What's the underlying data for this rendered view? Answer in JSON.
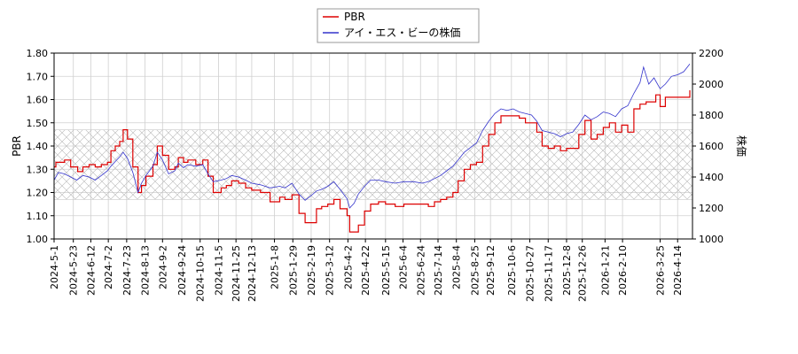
{
  "chart_data": {
    "type": "line",
    "legend_position": "top-center",
    "grid": true,
    "band": {
      "from": 1.17,
      "to": 1.47,
      "axis": "left",
      "pattern": "crosshatch"
    },
    "xlim": [
      "2024-05-01",
      "2026-05-01"
    ],
    "y_left": {
      "label": "PBR",
      "lim": [
        1.0,
        1.8
      ],
      "ticks": [
        "1.00",
        "1.10",
        "1.20",
        "1.30",
        "1.40",
        "1.50",
        "1.60",
        "1.70",
        "1.80"
      ]
    },
    "y_right": {
      "label": "株価",
      "lim": [
        1000,
        2200
      ],
      "ticks": [
        "1000",
        "1200",
        "1400",
        "1600",
        "1800",
        "2000",
        "2200"
      ]
    },
    "x_ticks": [
      "2024-5-1",
      "2024-5-23",
      "2024-6-12",
      "2024-7-2",
      "2024-7-23",
      "2024-8-13",
      "2024-9-2",
      "2024-9-24",
      "2024-10-15",
      "2024-11-5",
      "2024-11-25",
      "2024-12-13",
      "2025-1-8",
      "2025-1-29",
      "2025-2-19",
      "2025-3-12",
      "2025-4-2",
      "2025-4-22",
      "2025-5-15",
      "2025-6-4",
      "2025-6-24",
      "2025-7-14",
      "2025-8-4",
      "2025-8-25",
      "2025-9-12",
      "2025-10-6",
      "2025-10-27",
      "2025-11-17",
      "2025-12-8",
      "2025-12-26",
      "2026-1-21",
      "2026-2-10",
      "2026-3-25",
      "2026-4-14"
    ],
    "series": [
      {
        "name": "PBR",
        "color": "#dd0000",
        "axis": "left",
        "points": [
          [
            "2024-05-01",
            1.31
          ],
          [
            "2024-05-03",
            1.33
          ],
          [
            "2024-05-13",
            1.34
          ],
          [
            "2024-05-20",
            1.31
          ],
          [
            "2024-05-28",
            1.29
          ],
          [
            "2024-06-03",
            1.31
          ],
          [
            "2024-06-10",
            1.32
          ],
          [
            "2024-06-17",
            1.31
          ],
          [
            "2024-06-24",
            1.32
          ],
          [
            "2024-07-01",
            1.33
          ],
          [
            "2024-07-05",
            1.38
          ],
          [
            "2024-07-10",
            1.4
          ],
          [
            "2024-07-15",
            1.42
          ],
          [
            "2024-07-19",
            1.47
          ],
          [
            "2024-07-24",
            1.43
          ],
          [
            "2024-07-30",
            1.31
          ],
          [
            "2024-08-05",
            1.2
          ],
          [
            "2024-08-09",
            1.23
          ],
          [
            "2024-08-14",
            1.27
          ],
          [
            "2024-08-22",
            1.32
          ],
          [
            "2024-08-27",
            1.4
          ],
          [
            "2024-09-02",
            1.36
          ],
          [
            "2024-09-09",
            1.3
          ],
          [
            "2024-09-16",
            1.31
          ],
          [
            "2024-09-20",
            1.35
          ],
          [
            "2024-09-26",
            1.33
          ],
          [
            "2024-10-01",
            1.34
          ],
          [
            "2024-10-10",
            1.32
          ],
          [
            "2024-10-18",
            1.34
          ],
          [
            "2024-10-24",
            1.27
          ],
          [
            "2024-10-30",
            1.2
          ],
          [
            "2024-11-08",
            1.22
          ],
          [
            "2024-11-14",
            1.23
          ],
          [
            "2024-11-20",
            1.25
          ],
          [
            "2024-11-28",
            1.24
          ],
          [
            "2024-12-06",
            1.22
          ],
          [
            "2024-12-13",
            1.21
          ],
          [
            "2024-12-23",
            1.2
          ],
          [
            "2025-01-03",
            1.16
          ],
          [
            "2025-01-14",
            1.18
          ],
          [
            "2025-01-20",
            1.17
          ],
          [
            "2025-01-28",
            1.19
          ],
          [
            "2025-02-05",
            1.11
          ],
          [
            "2025-02-12",
            1.07
          ],
          [
            "2025-02-19",
            1.07
          ],
          [
            "2025-02-25",
            1.13
          ],
          [
            "2025-03-03",
            1.14
          ],
          [
            "2025-03-10",
            1.15
          ],
          [
            "2025-03-17",
            1.17
          ],
          [
            "2025-03-24",
            1.13
          ],
          [
            "2025-04-01",
            1.1
          ],
          [
            "2025-04-04",
            1.03
          ],
          [
            "2025-04-09",
            1.03
          ],
          [
            "2025-04-14",
            1.06
          ],
          [
            "2025-04-21",
            1.12
          ],
          [
            "2025-04-28",
            1.15
          ],
          [
            "2025-05-07",
            1.16
          ],
          [
            "2025-05-15",
            1.15
          ],
          [
            "2025-05-26",
            1.14
          ],
          [
            "2025-06-05",
            1.15
          ],
          [
            "2025-06-16",
            1.15
          ],
          [
            "2025-06-26",
            1.15
          ],
          [
            "2025-07-03",
            1.14
          ],
          [
            "2025-07-10",
            1.16
          ],
          [
            "2025-07-17",
            1.17
          ],
          [
            "2025-07-24",
            1.18
          ],
          [
            "2025-07-31",
            1.2
          ],
          [
            "2025-08-06",
            1.25
          ],
          [
            "2025-08-13",
            1.3
          ],
          [
            "2025-08-20",
            1.32
          ],
          [
            "2025-08-27",
            1.33
          ],
          [
            "2025-09-03",
            1.4
          ],
          [
            "2025-09-10",
            1.45
          ],
          [
            "2025-09-17",
            1.5
          ],
          [
            "2025-09-24",
            1.53
          ],
          [
            "2025-10-01",
            1.53
          ],
          [
            "2025-10-08",
            1.53
          ],
          [
            "2025-10-15",
            1.52
          ],
          [
            "2025-10-22",
            1.5
          ],
          [
            "2025-10-29",
            1.5
          ],
          [
            "2025-11-04",
            1.46
          ],
          [
            "2025-11-10",
            1.4
          ],
          [
            "2025-11-17",
            1.39
          ],
          [
            "2025-11-24",
            1.4
          ],
          [
            "2025-12-01",
            1.38
          ],
          [
            "2025-12-08",
            1.39
          ],
          [
            "2025-12-15",
            1.39
          ],
          [
            "2025-12-22",
            1.45
          ],
          [
            "2025-12-29",
            1.51
          ],
          [
            "2026-01-05",
            1.43
          ],
          [
            "2026-01-12",
            1.45
          ],
          [
            "2026-01-19",
            1.48
          ],
          [
            "2026-01-26",
            1.5
          ],
          [
            "2026-02-02",
            1.46
          ],
          [
            "2026-02-09",
            1.49
          ],
          [
            "2026-02-16",
            1.46
          ],
          [
            "2026-02-23",
            1.56
          ],
          [
            "2026-03-02",
            1.58
          ],
          [
            "2026-03-09",
            1.59
          ],
          [
            "2026-03-16",
            1.59
          ],
          [
            "2026-03-20",
            1.62
          ],
          [
            "2026-03-25",
            1.57
          ],
          [
            "2026-03-31",
            1.61
          ],
          [
            "2026-04-07",
            1.61
          ],
          [
            "2026-04-14",
            1.61
          ],
          [
            "2026-04-21",
            1.61
          ],
          [
            "2026-04-28",
            1.64
          ]
        ]
      },
      {
        "name": "アイ・エス・ビーの株価",
        "color": "#3333cc",
        "axis": "right",
        "points": [
          [
            "2024-05-01",
            1380
          ],
          [
            "2024-05-06",
            1430
          ],
          [
            "2024-05-13",
            1420
          ],
          [
            "2024-05-20",
            1400
          ],
          [
            "2024-05-27",
            1380
          ],
          [
            "2024-06-03",
            1410
          ],
          [
            "2024-06-10",
            1400
          ],
          [
            "2024-06-17",
            1380
          ],
          [
            "2024-06-24",
            1410
          ],
          [
            "2024-07-01",
            1440
          ],
          [
            "2024-07-05",
            1470
          ],
          [
            "2024-07-10",
            1500
          ],
          [
            "2024-07-15",
            1530
          ],
          [
            "2024-07-19",
            1560
          ],
          [
            "2024-07-24",
            1520
          ],
          [
            "2024-07-30",
            1430
          ],
          [
            "2024-08-05",
            1300
          ],
          [
            "2024-08-09",
            1360
          ],
          [
            "2024-08-14",
            1410
          ],
          [
            "2024-08-22",
            1470
          ],
          [
            "2024-08-27",
            1560
          ],
          [
            "2024-09-02",
            1510
          ],
          [
            "2024-09-09",
            1420
          ],
          [
            "2024-09-16",
            1440
          ],
          [
            "2024-09-20",
            1490
          ],
          [
            "2024-09-26",
            1460
          ],
          [
            "2024-10-01",
            1480
          ],
          [
            "2024-10-10",
            1470
          ],
          [
            "2024-10-18",
            1480
          ],
          [
            "2024-10-24",
            1420
          ],
          [
            "2024-10-30",
            1370
          ],
          [
            "2024-11-08",
            1380
          ],
          [
            "2024-11-14",
            1390
          ],
          [
            "2024-11-20",
            1410
          ],
          [
            "2024-11-28",
            1400
          ],
          [
            "2024-12-06",
            1380
          ],
          [
            "2024-12-13",
            1360
          ],
          [
            "2024-12-23",
            1350
          ],
          [
            "2025-01-03",
            1330
          ],
          [
            "2025-01-14",
            1340
          ],
          [
            "2025-01-20",
            1330
          ],
          [
            "2025-01-28",
            1360
          ],
          [
            "2025-02-05",
            1290
          ],
          [
            "2025-02-12",
            1250
          ],
          [
            "2025-02-19",
            1280
          ],
          [
            "2025-02-25",
            1310
          ],
          [
            "2025-03-03",
            1320
          ],
          [
            "2025-03-10",
            1340
          ],
          [
            "2025-03-17",
            1370
          ],
          [
            "2025-03-24",
            1320
          ],
          [
            "2025-04-01",
            1260
          ],
          [
            "2025-04-04",
            1200
          ],
          [
            "2025-04-09",
            1230
          ],
          [
            "2025-04-14",
            1290
          ],
          [
            "2025-04-21",
            1340
          ],
          [
            "2025-04-28",
            1380
          ],
          [
            "2025-05-07",
            1380
          ],
          [
            "2025-05-15",
            1370
          ],
          [
            "2025-05-26",
            1360
          ],
          [
            "2025-06-05",
            1370
          ],
          [
            "2025-06-16",
            1370
          ],
          [
            "2025-06-26",
            1360
          ],
          [
            "2025-07-03",
            1370
          ],
          [
            "2025-07-10",
            1390
          ],
          [
            "2025-07-17",
            1410
          ],
          [
            "2025-07-24",
            1440
          ],
          [
            "2025-07-31",
            1470
          ],
          [
            "2025-08-06",
            1510
          ],
          [
            "2025-08-13",
            1560
          ],
          [
            "2025-08-20",
            1590
          ],
          [
            "2025-08-27",
            1620
          ],
          [
            "2025-09-03",
            1700
          ],
          [
            "2025-09-10",
            1760
          ],
          [
            "2025-09-17",
            1810
          ],
          [
            "2025-09-24",
            1840
          ],
          [
            "2025-10-01",
            1830
          ],
          [
            "2025-10-08",
            1840
          ],
          [
            "2025-10-15",
            1820
          ],
          [
            "2025-10-22",
            1810
          ],
          [
            "2025-10-29",
            1800
          ],
          [
            "2025-11-04",
            1760
          ],
          [
            "2025-11-10",
            1700
          ],
          [
            "2025-11-17",
            1690
          ],
          [
            "2025-11-24",
            1680
          ],
          [
            "2025-12-01",
            1660
          ],
          [
            "2025-12-08",
            1680
          ],
          [
            "2025-12-15",
            1690
          ],
          [
            "2025-12-22",
            1740
          ],
          [
            "2025-12-29",
            1800
          ],
          [
            "2026-01-05",
            1770
          ],
          [
            "2026-01-12",
            1790
          ],
          [
            "2026-01-19",
            1820
          ],
          [
            "2026-01-26",
            1810
          ],
          [
            "2026-02-02",
            1790
          ],
          [
            "2026-02-09",
            1840
          ],
          [
            "2026-02-16",
            1860
          ],
          [
            "2026-02-23",
            1940
          ],
          [
            "2026-03-02",
            2010
          ],
          [
            "2026-03-06",
            2110
          ],
          [
            "2026-03-12",
            2000
          ],
          [
            "2026-03-18",
            2040
          ],
          [
            "2026-03-25",
            1970
          ],
          [
            "2026-03-31",
            2000
          ],
          [
            "2026-04-07",
            2050
          ],
          [
            "2026-04-14",
            2060
          ],
          [
            "2026-04-21",
            2080
          ],
          [
            "2026-04-28",
            2130
          ]
        ]
      }
    ]
  }
}
